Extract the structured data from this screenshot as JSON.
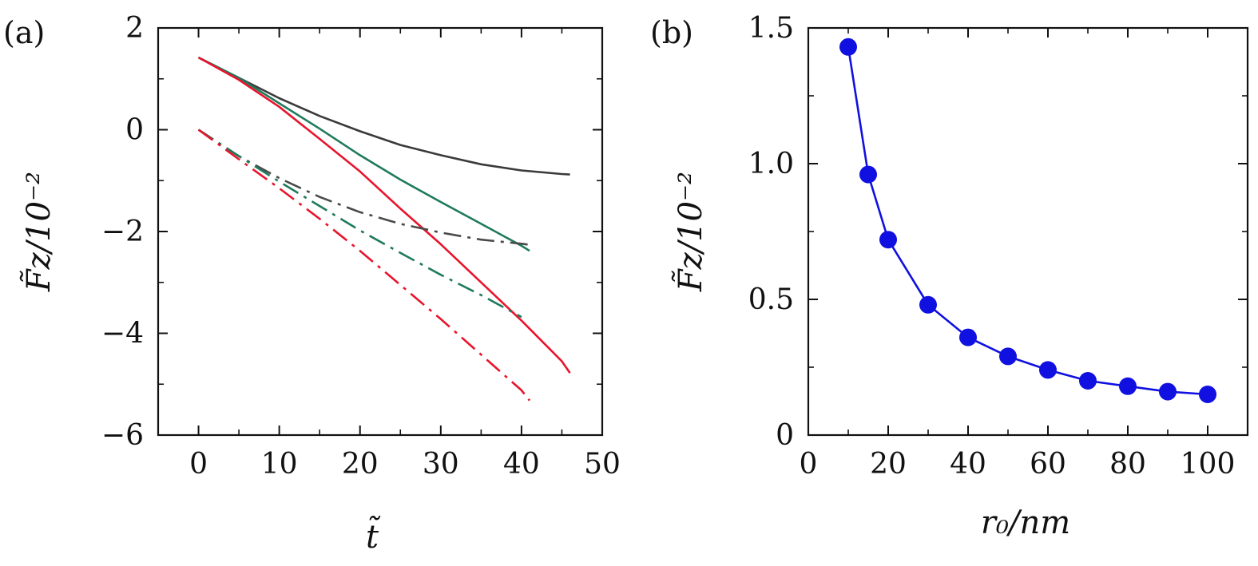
{
  "chart_data": [
    {
      "panel_label": "(a)",
      "type": "line",
      "xlabel": "t̃",
      "ylabel": "F̃z/10⁻²",
      "xlim": [
        -5,
        50
      ],
      "ylim": [
        -6,
        2
      ],
      "xticks": [
        "0",
        "10",
        "20",
        "30",
        "40",
        "50"
      ],
      "xtick_values": [
        0,
        10,
        20,
        30,
        40,
        50
      ],
      "yticks": [
        "2",
        "0",
        "−2",
        "−4",
        "−6"
      ],
      "ytick_values": [
        2,
        0,
        -2,
        -4,
        -6
      ],
      "grid": false,
      "series": [
        {
          "style": "solid",
          "color": "#3a3a3a",
          "x": [
            0,
            5,
            10,
            15,
            20,
            25,
            30,
            35,
            40,
            45,
            46
          ],
          "y": [
            1.42,
            1.02,
            0.62,
            0.27,
            -0.03,
            -0.3,
            -0.5,
            -0.68,
            -0.8,
            -0.87,
            -0.88
          ]
        },
        {
          "style": "solid",
          "color": "#1f7a5c",
          "x": [
            0,
            5,
            10,
            15,
            20,
            25,
            30,
            35,
            40,
            41
          ],
          "y": [
            1.42,
            1.02,
            0.52,
            0.02,
            -0.5,
            -0.98,
            -1.42,
            -1.85,
            -2.28,
            -2.38
          ]
        },
        {
          "style": "solid",
          "color": "#e8142c",
          "x": [
            0,
            5,
            10,
            15,
            20,
            25,
            30,
            35,
            40,
            45,
            46
          ],
          "y": [
            1.42,
            0.98,
            0.45,
            -0.18,
            -0.82,
            -1.55,
            -2.25,
            -3.0,
            -3.75,
            -4.55,
            -4.78
          ]
        },
        {
          "style": "dashdot",
          "color": "#4a4a4a",
          "x": [
            0,
            5,
            10,
            15,
            20,
            25,
            30,
            35,
            40,
            41
          ],
          "y": [
            0.0,
            -0.52,
            -0.95,
            -1.32,
            -1.62,
            -1.85,
            -2.02,
            -2.16,
            -2.24,
            -2.26
          ]
        },
        {
          "style": "dashdot",
          "color": "#1f7a5c",
          "x": [
            0,
            5,
            10,
            15,
            20,
            25,
            30,
            35,
            40
          ],
          "y": [
            0.0,
            -0.52,
            -1.02,
            -1.5,
            -1.98,
            -2.42,
            -2.85,
            -3.25,
            -3.68
          ]
        },
        {
          "style": "dashdot",
          "color": "#e8142c",
          "x": [
            0,
            5,
            10,
            15,
            20,
            25,
            30,
            35,
            40,
            41
          ],
          "y": [
            0.0,
            -0.58,
            -1.15,
            -1.75,
            -2.38,
            -3.05,
            -3.72,
            -4.42,
            -5.12,
            -5.32
          ]
        }
      ]
    },
    {
      "panel_label": "(b)",
      "type": "line",
      "xlabel": "r₀/nm",
      "ylabel": "F̃z/10⁻²",
      "xlim": [
        0,
        110
      ],
      "ylim": [
        0,
        1.5
      ],
      "xticks": [
        "0",
        "20",
        "40",
        "60",
        "80",
        "100"
      ],
      "xtick_values": [
        0,
        20,
        40,
        60,
        80,
        100
      ],
      "yticks": [
        "1.5",
        "1.0",
        "0.5",
        "0"
      ],
      "ytick_values": [
        1.5,
        1.0,
        0.5,
        0
      ],
      "grid": false,
      "series": [
        {
          "style": "solid-markers",
          "color": "#1010e0",
          "x": [
            10,
            15,
            20,
            30,
            40,
            50,
            60,
            70,
            80,
            90,
            100
          ],
          "y": [
            1.43,
            0.96,
            0.72,
            0.48,
            0.36,
            0.29,
            0.24,
            0.2,
            0.18,
            0.16,
            0.15
          ]
        }
      ]
    }
  ]
}
